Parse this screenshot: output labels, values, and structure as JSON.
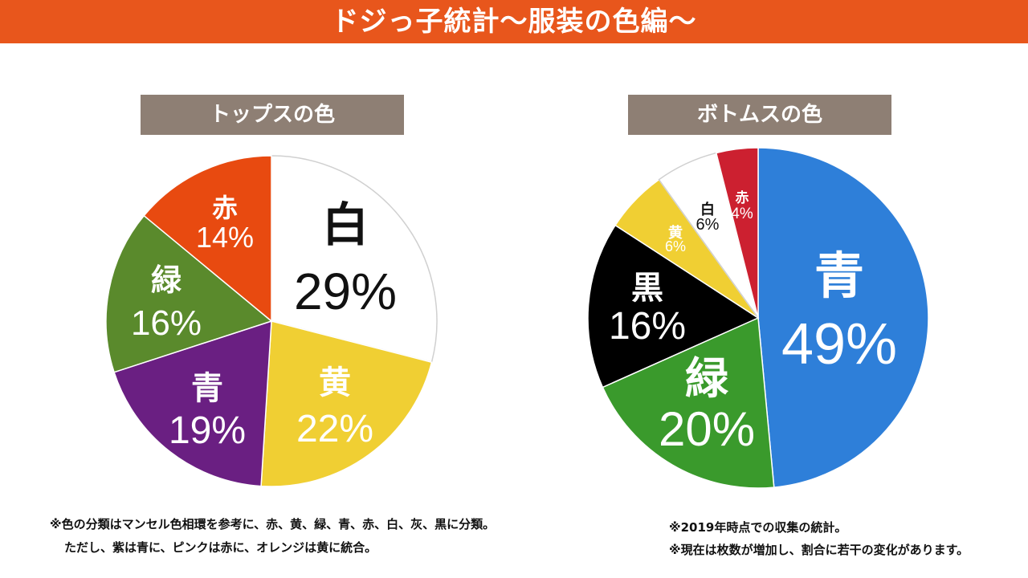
{
  "header": {
    "title": "ドジっ子統計〜服装の色編〜"
  },
  "chart_data": [
    {
      "type": "pie",
      "title": "トップスの色",
      "slices": [
        {
          "label": "白",
          "value": 29,
          "display": "29%",
          "color": "#ffffff",
          "text_color": "#111111"
        },
        {
          "label": "黄",
          "value": 22,
          "display": "22%",
          "color": "#f0cf33",
          "text_color": "#ffffff"
        },
        {
          "label": "青",
          "value": 19,
          "display": "19%",
          "color": "#6a1f82",
          "text_color": "#ffffff"
        },
        {
          "label": "緑",
          "value": 16,
          "display": "16%",
          "color": "#5a8a2c",
          "text_color": "#ffffff"
        },
        {
          "label": "赤",
          "value": 14,
          "display": "14%",
          "color": "#e84a10",
          "text_color": "#ffffff"
        }
      ]
    },
    {
      "type": "pie",
      "title": "ボトムスの色",
      "slices": [
        {
          "label": "青",
          "value": 49,
          "display": "49%",
          "color": "#2e7fd9",
          "text_color": "#ffffff"
        },
        {
          "label": "緑",
          "value": 20,
          "display": "20%",
          "color": "#3a9a2c",
          "text_color": "#ffffff"
        },
        {
          "label": "黒",
          "value": 16,
          "display": "16%",
          "color": "#000000",
          "text_color": "#ffffff"
        },
        {
          "label": "黄",
          "value": 6,
          "display": "6%",
          "color": "#f0cf33",
          "text_color": "#ffffff"
        },
        {
          "label": "白",
          "value": 6,
          "display": "6%",
          "color": "#ffffff",
          "text_color": "#111111"
        },
        {
          "label": "赤",
          "value": 4,
          "display": "4%",
          "color": "#cc2030",
          "text_color": "#ffffff"
        }
      ]
    }
  ],
  "notes": {
    "left_line1": "※色の分類はマンセル色相環を参考に、赤、黄、緑、青、赤、白、灰、黒に分類。",
    "left_line2": "ただし、紫は青に、ピンクは赤に、オレンジは黄に統合。",
    "right_line1": "※2019年時点での収集の統計。",
    "right_line2": "※現在は枚数が増加し、割合に若干の変化があります。"
  }
}
